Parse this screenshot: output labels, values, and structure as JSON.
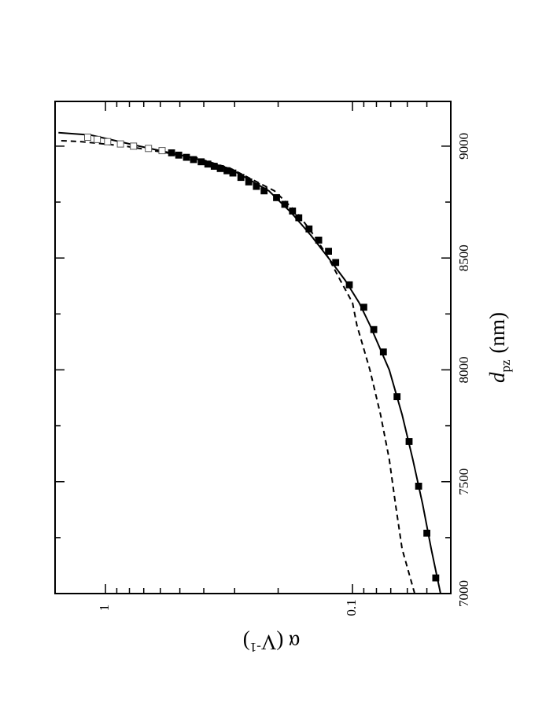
{
  "chart_data": {
    "type": "scatter",
    "orientation": "rotated-90-clockwise",
    "title": "",
    "xlabel": {
      "main": "d",
      "sub": "pz",
      "unit": "(nm)"
    },
    "ylabel": {
      "main": "α (V",
      "sup": "-1",
      "close": ")"
    },
    "xlim": [
      7000,
      9200
    ],
    "ylim": [
      0.04,
      1.6
    ],
    "yscale": "log",
    "x_ticks": [
      {
        "value": 7000,
        "label": "7000"
      },
      {
        "value": 7500,
        "label": "7500"
      },
      {
        "value": 8000,
        "label": "8000"
      },
      {
        "value": 8500,
        "label": "8500"
      },
      {
        "value": 9000,
        "label": "9000"
      }
    ],
    "y_ticks": [
      {
        "value": 1,
        "label": "1"
      },
      {
        "value": 0.1,
        "label": "0.1"
      }
    ],
    "grid": false,
    "legend": "none",
    "series": [
      {
        "marker": "filled-square",
        "color": "#000000",
        "x": [
          7070,
          7270,
          7480,
          7680,
          7880,
          8080,
          8180,
          8280,
          8380,
          8480,
          8530,
          8580,
          8630,
          8680,
          8710,
          8740,
          8770,
          8800,
          8820,
          8840,
          8860,
          8880,
          8890,
          8900,
          8910,
          8920,
          8930,
          8940,
          8950,
          8960,
          8970
        ],
        "y": [
          0.046,
          0.05,
          0.054,
          0.059,
          0.066,
          0.075,
          0.082,
          0.09,
          0.103,
          0.117,
          0.125,
          0.137,
          0.15,
          0.165,
          0.175,
          0.188,
          0.203,
          0.228,
          0.245,
          0.263,
          0.283,
          0.305,
          0.322,
          0.343,
          0.363,
          0.385,
          0.41,
          0.44,
          0.47,
          0.505,
          0.54
        ]
      },
      {
        "marker": "open-square",
        "color": "#555555",
        "x": [
          8980,
          8990,
          9000,
          9010,
          9020,
          9030,
          9040
        ],
        "y": [
          0.59,
          0.67,
          0.77,
          0.87,
          0.98,
          1.08,
          1.18
        ]
      }
    ],
    "curves": [
      {
        "style": "solid",
        "color": "#000000",
        "x": [
          7000,
          7200,
          7400,
          7600,
          7800,
          8000,
          8200,
          8300,
          8400,
          8500,
          8600,
          8700,
          8800,
          8900,
          8950,
          9000,
          9050,
          9060
        ],
        "y": [
          0.044,
          0.048,
          0.052,
          0.057,
          0.063,
          0.071,
          0.085,
          0.094,
          0.107,
          0.125,
          0.147,
          0.176,
          0.218,
          0.314,
          0.452,
          0.73,
          1.15,
          1.55
        ]
      },
      {
        "style": "dashed",
        "color": "#000000",
        "x": [
          7000,
          7200,
          7400,
          7600,
          7800,
          8000,
          8200,
          8300,
          8400,
          8500,
          8600,
          8700,
          8800,
          8900,
          8950,
          9000,
          9020,
          9025
        ],
        "y": [
          0.056,
          0.063,
          0.067,
          0.071,
          0.077,
          0.085,
          0.096,
          0.1,
          0.112,
          0.125,
          0.143,
          0.167,
          0.207,
          0.311,
          0.435,
          0.83,
          1.25,
          1.55
        ]
      }
    ]
  }
}
